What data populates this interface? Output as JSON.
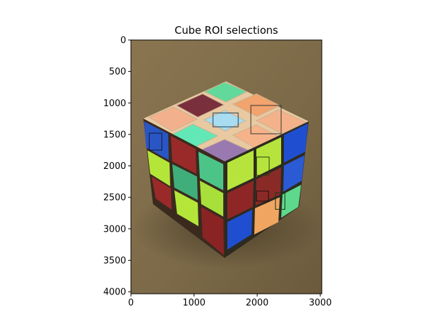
{
  "chart_data": {
    "type": "image",
    "title": "Cube ROI selections",
    "xlabel": "",
    "ylabel": "",
    "xlim": [
      0,
      3024
    ],
    "ylim": [
      4032,
      0
    ],
    "x_ticks": [
      0,
      1000,
      2000,
      3000
    ],
    "y_ticks": [
      0,
      500,
      1000,
      1500,
      2000,
      2500,
      3000,
      3500,
      4000
    ],
    "grid": false,
    "legend": "none",
    "rois": [
      {
        "x": 1900,
        "y": 1040,
        "w": 480,
        "h": 450,
        "color": "#333333"
      },
      {
        "x": 1300,
        "y": 1160,
        "w": 400,
        "h": 220,
        "color": "#1e3d5a"
      },
      {
        "x": 290,
        "y": 1480,
        "w": 200,
        "h": 270,
        "color": "#101a30"
      },
      {
        "x": 1990,
        "y": 1860,
        "w": 200,
        "h": 290,
        "color": "#2f3a12"
      },
      {
        "x": 1990,
        "y": 2400,
        "w": 190,
        "h": 160,
        "color": "#201010"
      },
      {
        "x": 2290,
        "y": 2430,
        "w": 150,
        "h": 260,
        "color": "#143318"
      }
    ]
  }
}
